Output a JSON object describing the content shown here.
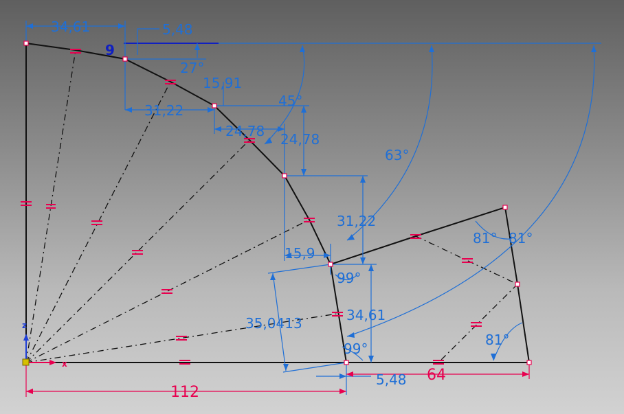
{
  "sketch": {
    "colors": {
      "geometry": "#111111",
      "dimension": "#1f6fd6",
      "constraint": "#e8004f",
      "axis_z": "#1f3fd6",
      "axis_x": "#e8004f",
      "origin": "#d6c000"
    },
    "axes": {
      "z_label": "z",
      "x_label": "x"
    },
    "dimensions": {
      "top_width": "34,61",
      "top_offset": "5,48",
      "angle_27": "27°",
      "vert_15_91": "15,91",
      "horiz_31_22": "31,22",
      "angle_45": "45°",
      "horiz_24_78": "24,78",
      "vert_24_78": "24,78",
      "angle_63": "63°",
      "vert_31_22": "31,22",
      "horiz_15_9": "15,9",
      "angle_81_left": "81°",
      "angle_81_right": "81°",
      "angle_99_top": "99°",
      "slant_35_0413": "35,0413",
      "vert_34_61": "34,61",
      "angle_99_bottom": "99°",
      "angle_81_bottom": "81°",
      "base_5_48": "5,48",
      "base_64": "64",
      "base_112": "112"
    },
    "constraint_glyphs": {
      "parallel": "=",
      "small_label": "9"
    }
  }
}
